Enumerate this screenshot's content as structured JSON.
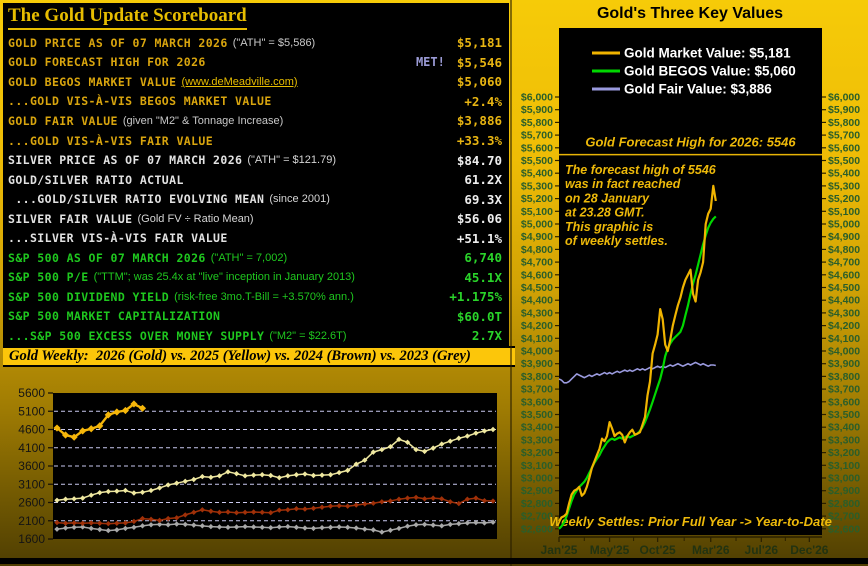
{
  "scoreboard": {
    "title": "The Gold Update Scoreboard",
    "rows": [
      {
        "label": "GOLD PRICE AS OF 07 MARCH 2026",
        "note": "(\"ATH\" = $5,586)",
        "value": "$5,181",
        "group": "gold"
      },
      {
        "label": "GOLD FORECAST HIGH FOR 2026",
        "met": "MET!",
        "value": "$5,546",
        "group": "gold"
      },
      {
        "label": "GOLD BEGOS MARKET VALUE",
        "note": "(www.deMeadville.com)",
        "note_link": true,
        "value": "$5,060",
        "group": "gold"
      },
      {
        "label": "...GOLD VIS-À-VIS BEGOS MARKET VALUE",
        "value": "+2.4%",
        "group": "gold"
      },
      {
        "label": "GOLD FAIR VALUE",
        "note": "(given \"M2\" & Tonnage Increase)",
        "value": "$3,886",
        "group": "gold"
      },
      {
        "label": "...GOLD VIS-À-VIS FAIR VALUE",
        "value": "+33.3%",
        "group": "gold"
      },
      {
        "label": "SILVER PRICE AS OF 07 MARCH 2026",
        "note": "(\"ATH\" = $121.79)",
        "value": "$84.70",
        "group": "silver"
      },
      {
        "label": "GOLD/SILVER RATIO ACTUAL",
        "value": "61.2X",
        "group": "silver"
      },
      {
        "label": " ...GOLD/SILVER RATIO EVOLVING MEAN",
        "note": "(since 2001)",
        "value": "69.3X",
        "group": "silver"
      },
      {
        "label": "SILVER FAIR VALUE",
        "note": "(Gold FV ÷ Ratio Mean)",
        "value": "$56.06",
        "group": "silver"
      },
      {
        "label": "...SILVER VIS-À-VIS FAIR VALUE",
        "value": "+51.1%",
        "group": "silver"
      },
      {
        "label": "S&P 500 AS OF 07 MARCH 2026",
        "note": "(\"ATH\" = 7,002)",
        "value": "6,740",
        "group": "sp"
      },
      {
        "label": "S&P 500 P/E",
        "note": "(\"TTM\"; was 25.4x at \"live\" inception in January 2013)",
        "value": "45.1X",
        "group": "sp"
      },
      {
        "label": "S&P 500 DIVIDEND YIELD",
        "note": "(risk-free 3mo.T-Bill = +3.570% ann.)",
        "value": "+1.175%",
        "group": "sp"
      },
      {
        "label": "S&P 500 MARKET CAPITALIZATION",
        "value": "$60.0T",
        "group": "sp"
      },
      {
        "label": "...S&P 500 EXCESS OVER MONEY SUPPLY",
        "note": "(\"M2\" = $22.6T)",
        "value": "2.7X",
        "group": "sp"
      }
    ]
  },
  "colors": {
    "gold_text": "#d9a50e",
    "silver_text": "#e2e2e2",
    "sp_text": "#1fc81f",
    "note_gray": "#c9c9c9",
    "met": "#9b9bd6",
    "title_gold": "#e7bd00",
    "annotation_gold": "#edb90a",
    "axis_green": "#2a5e2a",
    "axis_dark": "#223311"
  },
  "chart_data": [
    {
      "type": "line",
      "title": "Gold Weekly:  2026 (Gold) vs. 2025 (Yellow) vs. 2024 (Brown) vs. 2023 (Grey)",
      "ylim": [
        1600,
        5600
      ],
      "yticks": [
        1600,
        2100,
        2600,
        3100,
        3600,
        4100,
        4600,
        5100,
        5600
      ],
      "weeks": 52,
      "grid": "dashed",
      "series": [
        {
          "name": "2026 (Gold)",
          "color": "#f5b60a",
          "big": true,
          "values": [
            4640,
            4450,
            4390,
            4560,
            4620,
            4700,
            5000,
            5080,
            5120,
            5300,
            5181
          ]
        },
        {
          "name": "2025 (Yellow)",
          "color": "#efe8a0",
          "values": [
            2660,
            2690,
            2700,
            2720,
            2800,
            2870,
            2900,
            2910,
            2930,
            2860,
            2880,
            2930,
            3000,
            3080,
            3130,
            3180,
            3230,
            3310,
            3290,
            3330,
            3440,
            3390,
            3330,
            3350,
            3360,
            3340,
            3280,
            3330,
            3360,
            3380,
            3340,
            3350,
            3360,
            3420,
            3480,
            3650,
            3760,
            3980,
            4050,
            4130,
            4330,
            4250,
            4050,
            4000,
            4090,
            4200,
            4280,
            4360,
            4420,
            4500,
            4560,
            4600
          ]
        },
        {
          "name": "2024 (Brown)",
          "color": "#a03008",
          "values": [
            2050,
            2030,
            2040,
            2030,
            2040,
            2030,
            2020,
            2030,
            2040,
            2080,
            2160,
            2140,
            2110,
            2160,
            2180,
            2260,
            2330,
            2400,
            2360,
            2330,
            2340,
            2320,
            2330,
            2340,
            2330,
            2320,
            2390,
            2400,
            2430,
            2420,
            2440,
            2470,
            2500,
            2510,
            2500,
            2530,
            2560,
            2580,
            2620,
            2640,
            2690,
            2720,
            2740,
            2700,
            2720,
            2700,
            2620,
            2570,
            2690,
            2720,
            2650,
            2640
          ]
        },
        {
          "name": "2023 (Grey)",
          "color": "#a8a8a8",
          "values": [
            1870,
            1900,
            1920,
            1930,
            1890,
            1860,
            1830,
            1850,
            1890,
            1920,
            1960,
            1990,
            2000,
            1990,
            2010,
            2000,
            1980,
            1960,
            1940,
            1930,
            1920,
            1930,
            1940,
            1930,
            1920,
            1910,
            1930,
            1940,
            1920,
            1900,
            1890,
            1910,
            1920,
            1930,
            1920,
            1900,
            1870,
            1850,
            1790,
            1840,
            1890,
            1950,
            1990,
            2000,
            1980,
            1960,
            2000,
            2020,
            2040,
            2050,
            2040,
            2060
          ]
        }
      ]
    },
    {
      "type": "line",
      "title": "Gold's Three Key Values",
      "ylim": [
        2600,
        6000
      ],
      "ytick_step": 100,
      "weeks_total": 104,
      "xticks": [
        {
          "label": "Jan'25",
          "week": 0
        },
        {
          "label": "May'25",
          "week": 20
        },
        {
          "label": "Oct'25",
          "week": 39
        },
        {
          "label": "Mar'26",
          "week": 60
        },
        {
          "label": "Jul'26",
          "week": 80
        },
        {
          "label": "Dec'26",
          "week": 99
        }
      ],
      "forecast": {
        "value": 5546,
        "label": "Gold Forecast High for 2026:  5546"
      },
      "legend": [
        {
          "label": "Gold Market Value:  $5,181",
          "color": "#f0b400"
        },
        {
          "label": "Gold BEGOS Value:  $5,060",
          "color": "#00d800"
        },
        {
          "label": "Gold Fair Value:  $3,886",
          "color": "#9a9ade"
        }
      ],
      "annotation": [
        "The forecast high of 5546",
        "was in fact reached",
        "on 28 January",
        " at 23.28 GMT.",
        "This graphic is",
        "of weekly settles."
      ],
      "bottom_note": "Weekly Settles:  Prior Full Year -> Year-to-Date",
      "series": [
        {
          "name": "Gold Market Value",
          "color": "#f0b400",
          "values": [
            2660,
            2690,
            2700,
            2720,
            2800,
            2870,
            2900,
            2910,
            2930,
            2860,
            2880,
            2930,
            3000,
            3080,
            3130,
            3180,
            3230,
            3310,
            3290,
            3330,
            3440,
            3390,
            3330,
            3350,
            3360,
            3340,
            3280,
            3330,
            3360,
            3380,
            3340,
            3350,
            3360,
            3420,
            3480,
            3650,
            3760,
            3980,
            4050,
            4130,
            4330,
            4250,
            4050,
            4000,
            4090,
            4200,
            4280,
            4360,
            4420,
            4500,
            4560,
            4600,
            4640,
            4450,
            4390,
            4560,
            4620,
            4700,
            5000,
            5080,
            5120,
            5300,
            5181
          ]
        },
        {
          "name": "Gold BEGOS Value",
          "color": "#00d800",
          "values": [
            2600,
            2620,
            2650,
            2700,
            2760,
            2820,
            2870,
            2900,
            2930,
            2950,
            2970,
            3000,
            3040,
            3080,
            3120,
            3150,
            3180,
            3220,
            3250,
            3280,
            3300,
            3310,
            3300,
            3310,
            3320,
            3310,
            3320,
            3330,
            3320,
            3330,
            3340,
            3350,
            3370,
            3400,
            3440,
            3490,
            3540,
            3600,
            3660,
            3720,
            3780,
            3860,
            3960,
            4020,
            4060,
            4090,
            4110,
            4130,
            4150,
            4200,
            4280,
            4360,
            4450,
            4530,
            4600,
            4680,
            4760,
            4840,
            4910,
            4970,
            5010,
            5040,
            5060
          ]
        },
        {
          "name": "Gold Fair Value",
          "color": "#9a9ade",
          "values": [
            3780,
            3770,
            3750,
            3750,
            3760,
            3780,
            3800,
            3820,
            3810,
            3800,
            3790,
            3800,
            3810,
            3800,
            3810,
            3820,
            3810,
            3820,
            3830,
            3820,
            3830,
            3820,
            3830,
            3840,
            3830,
            3840,
            3850,
            3840,
            3850,
            3840,
            3850,
            3860,
            3850,
            3860,
            3850,
            3860,
            3870,
            3860,
            3870,
            3880,
            3870,
            3880,
            3870,
            3880,
            3890,
            3880,
            3890,
            3900,
            3890,
            3880,
            3890,
            3900,
            3890,
            3900,
            3910,
            3900,
            3890,
            3900,
            3890,
            3880,
            3890,
            3890,
            3886
          ]
        }
      ]
    }
  ]
}
